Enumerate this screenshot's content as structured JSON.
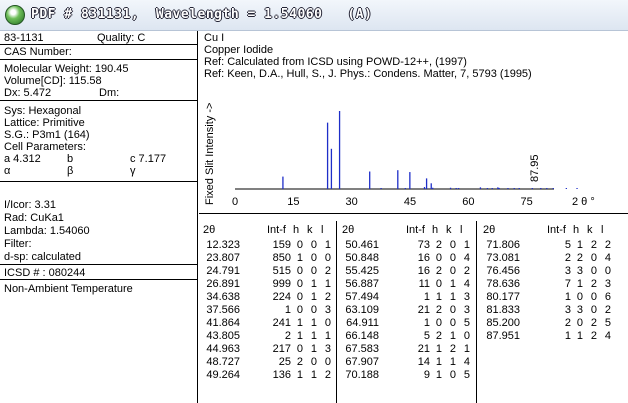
{
  "window": {
    "title": "PDF # 831131,  Wavelength = 1.54060   (A)",
    "logo_icon": "green-globe-icon"
  },
  "left": {
    "card_id": "83-1131",
    "quality": "Quality: C",
    "cas_number": "CAS Number:",
    "molecular_weight": "Molecular Weight:  190.45",
    "volume": "Volume[CD]:  115.58",
    "dx": "Dx:  5.472",
    "dm": "Dm:",
    "sys": "Sys: Hexagonal",
    "lattice": "Lattice: Primitive",
    "space_group": "S.G.: P3m1 (164)",
    "cell_parameters": "Cell Parameters:",
    "cell_a": "a  4.312",
    "cell_b": "b",
    "cell_c": "c  7.177",
    "cell_alpha": "α",
    "cell_beta": "β",
    "cell_gamma": "γ",
    "i_icor": "I/Icor:   3.31",
    "rad": "Rad: CuKa1",
    "lambda": "Lambda: 1.54060",
    "filter": "Filter:",
    "dsp": "d-sp: calculated",
    "icsd": "ICSD # : 080244",
    "non_ambient": "Non-Ambient Temperature"
  },
  "right": {
    "formula": "Cu I",
    "name": "Copper Iodide",
    "ref1": "Ref:  Calculated from ICSD using POWD-12++, (1997)",
    "ref2": "Ref:  Keen, D.A., Hull, S., J. Phys.: Condens. Matter, 7, 5793 (1995)"
  },
  "chart_data": {
    "type": "bar",
    "ylabel": "Fixed  Slit  Intensity  ->",
    "xlabel": "2 θ °",
    "xlim": [
      0,
      90
    ],
    "x_ticks": [
      "0",
      "15",
      "30",
      "45",
      "60",
      "75"
    ],
    "annotation": "87.95",
    "points": [
      {
        "x": 12.323,
        "y": 159
      },
      {
        "x": 23.807,
        "y": 850
      },
      {
        "x": 24.791,
        "y": 515
      },
      {
        "x": 26.891,
        "y": 999
      },
      {
        "x": 34.638,
        "y": 224
      },
      {
        "x": 37.566,
        "y": 1
      },
      {
        "x": 41.864,
        "y": 241
      },
      {
        "x": 43.805,
        "y": 2
      },
      {
        "x": 44.963,
        "y": 217
      },
      {
        "x": 48.727,
        "y": 25
      },
      {
        "x": 49.264,
        "y": 136
      },
      {
        "x": 50.461,
        "y": 73
      },
      {
        "x": 50.848,
        "y": 16
      },
      {
        "x": 55.425,
        "y": 16
      },
      {
        "x": 56.887,
        "y": 11
      },
      {
        "x": 57.494,
        "y": 1
      },
      {
        "x": 63.109,
        "y": 21
      },
      {
        "x": 64.911,
        "y": 1
      },
      {
        "x": 66.148,
        "y": 5
      },
      {
        "x": 67.583,
        "y": 21
      },
      {
        "x": 67.907,
        "y": 14
      },
      {
        "x": 70.188,
        "y": 9
      },
      {
        "x": 71.806,
        "y": 5
      },
      {
        "x": 73.081,
        "y": 2
      },
      {
        "x": 76.456,
        "y": 3
      },
      {
        "x": 78.636,
        "y": 7
      },
      {
        "x": 80.177,
        "y": 1
      },
      {
        "x": 81.833,
        "y": 3
      },
      {
        "x": 85.2,
        "y": 2
      },
      {
        "x": 87.951,
        "y": 1
      }
    ]
  },
  "table": {
    "headers": [
      "2θ",
      "Int-f",
      "h",
      "k",
      "l"
    ],
    "columns": [
      [
        [
          "12.323",
          "159",
          "0",
          "0",
          "1"
        ],
        [
          "23.807",
          "850",
          "1",
          "0",
          "0"
        ],
        [
          "24.791",
          "515",
          "0",
          "0",
          "2"
        ],
        [
          "26.891",
          "999",
          "0",
          "1",
          "1"
        ],
        [
          "34.638",
          "224",
          "0",
          "1",
          "2"
        ],
        [
          "37.566",
          "1",
          "0",
          "0",
          "3"
        ],
        [
          "41.864",
          "241",
          "1",
          "1",
          "0"
        ],
        [
          "43.805",
          "2",
          "1",
          "1",
          "1"
        ],
        [
          "44.963",
          "217",
          "0",
          "1",
          "3"
        ],
        [
          "48.727",
          "25",
          "2",
          "0",
          "0"
        ],
        [
          "49.264",
          "136",
          "1",
          "1",
          "2"
        ]
      ],
      [
        [
          "50.461",
          "73",
          "2",
          "0",
          "1"
        ],
        [
          "50.848",
          "16",
          "0",
          "0",
          "4"
        ],
        [
          "55.425",
          "16",
          "2",
          "0",
          "2"
        ],
        [
          "56.887",
          "11",
          "0",
          "1",
          "4"
        ],
        [
          "57.494",
          "1",
          "1",
          "1",
          "3"
        ],
        [
          "63.109",
          "21",
          "2",
          "0",
          "3"
        ],
        [
          "64.911",
          "1",
          "0",
          "0",
          "5"
        ],
        [
          "66.148",
          "5",
          "2",
          "1",
          "0"
        ],
        [
          "67.583",
          "21",
          "1",
          "2",
          "1"
        ],
        [
          "67.907",
          "14",
          "1",
          "1",
          "4"
        ],
        [
          "70.188",
          "9",
          "1",
          "0",
          "5"
        ]
      ],
      [
        [
          "71.806",
          "5",
          "1",
          "2",
          "2"
        ],
        [
          "73.081",
          "2",
          "2",
          "0",
          "4"
        ],
        [
          "76.456",
          "3",
          "3",
          "0",
          "0"
        ],
        [
          "78.636",
          "7",
          "1",
          "2",
          "3"
        ],
        [
          "80.177",
          "1",
          "0",
          "0",
          "6"
        ],
        [
          "81.833",
          "3",
          "3",
          "0",
          "2"
        ],
        [
          "85.200",
          "2",
          "0",
          "2",
          "5"
        ],
        [
          "87.951",
          "1",
          "1",
          "2",
          "4"
        ]
      ]
    ]
  }
}
